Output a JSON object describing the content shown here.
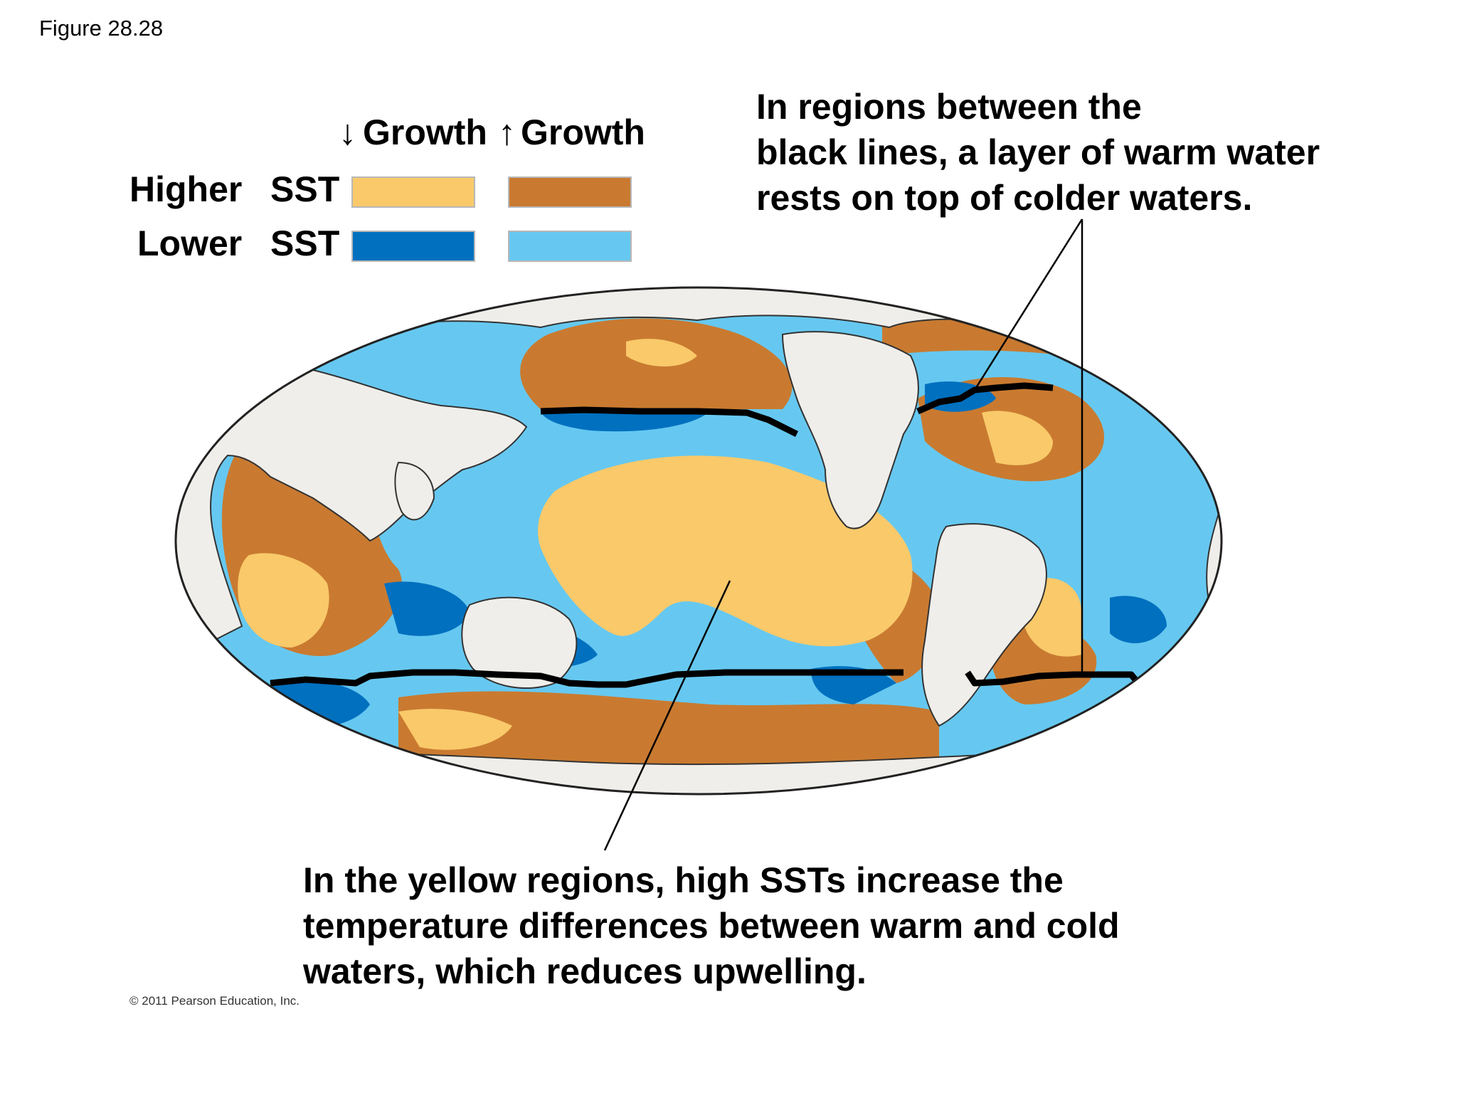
{
  "figure_label": "Figure 28.28",
  "legend": {
    "decrease_arrow": "↓",
    "increase_arrow": "↑",
    "decrease_label": "Growth",
    "increase_label": "Growth",
    "higher_label": "Higher",
    "lower_label": "Lower",
    "sst_label": "SST",
    "colors": {
      "higher_decrease": "#f9c96a",
      "higher_increase": "#c97a30",
      "lower_decrease": "#0070bf",
      "lower_increase": "#66c8f0"
    }
  },
  "callouts": {
    "top_lines": [
      "In regions between the",
      "black lines, a layer of warm water",
      "rests on top of colder waters."
    ],
    "bottom_lines": [
      "In the yellow regions, high SSTs increase the",
      "temperature differences between warm and cold",
      "waters, which reduces upwelling."
    ]
  },
  "copyright": "© 2011 Pearson Education, Inc."
}
